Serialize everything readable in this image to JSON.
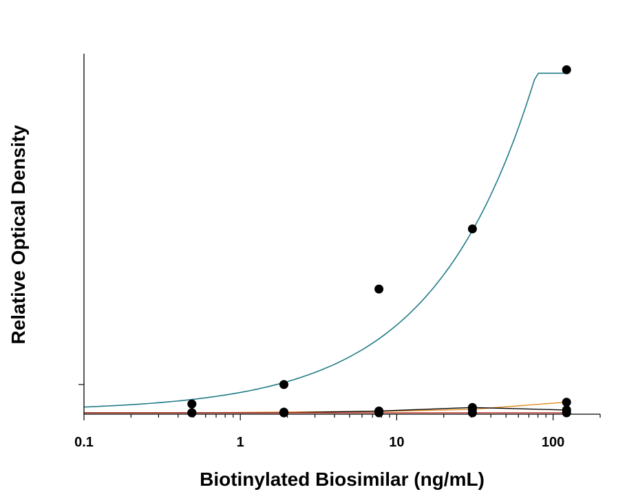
{
  "chart_data": {
    "type": "scatter",
    "title": "",
    "xlabel": "Biotinylated Biosimilar (ng/mL)",
    "ylabel": "Relative Optical Density",
    "x_scale": "log",
    "xlim": [
      0.1,
      200
    ],
    "ylim": [
      0,
      1
    ],
    "x_ticks": [
      {
        "value": 0.1,
        "label": "0.1"
      },
      {
        "value": 1,
        "label": "1"
      },
      {
        "value": 10,
        "label": "10"
      },
      {
        "value": 100,
        "label": "100"
      }
    ],
    "y_ticks": [
      0.08
    ],
    "grid": false,
    "legend": "none",
    "series": [
      {
        "color": "#1f7a86",
        "x": [
          0.49,
          1.9,
          7.7,
          30.5,
          122
        ],
        "y": [
          0.025,
          0.08,
          0.35,
          0.52,
          0.97
        ]
      },
      {
        "color": "#e08a1e",
        "x": [
          0.49,
          1.9,
          7.7,
          30.5,
          122
        ],
        "y": [
          0.0,
          0.002,
          0.004,
          0.01,
          0.03
        ]
      },
      {
        "color": "#000000",
        "x": [
          0.49,
          1.9,
          7.7,
          30.5,
          122
        ],
        "y": [
          0.0,
          0.0,
          0.005,
          0.015,
          0.008
        ]
      },
      {
        "color": "#c0392b",
        "x": [
          0.49,
          1.9,
          7.7,
          30.5,
          122
        ],
        "y": [
          0.0,
          0.0,
          0.0,
          0.0,
          0.0
        ]
      }
    ]
  }
}
